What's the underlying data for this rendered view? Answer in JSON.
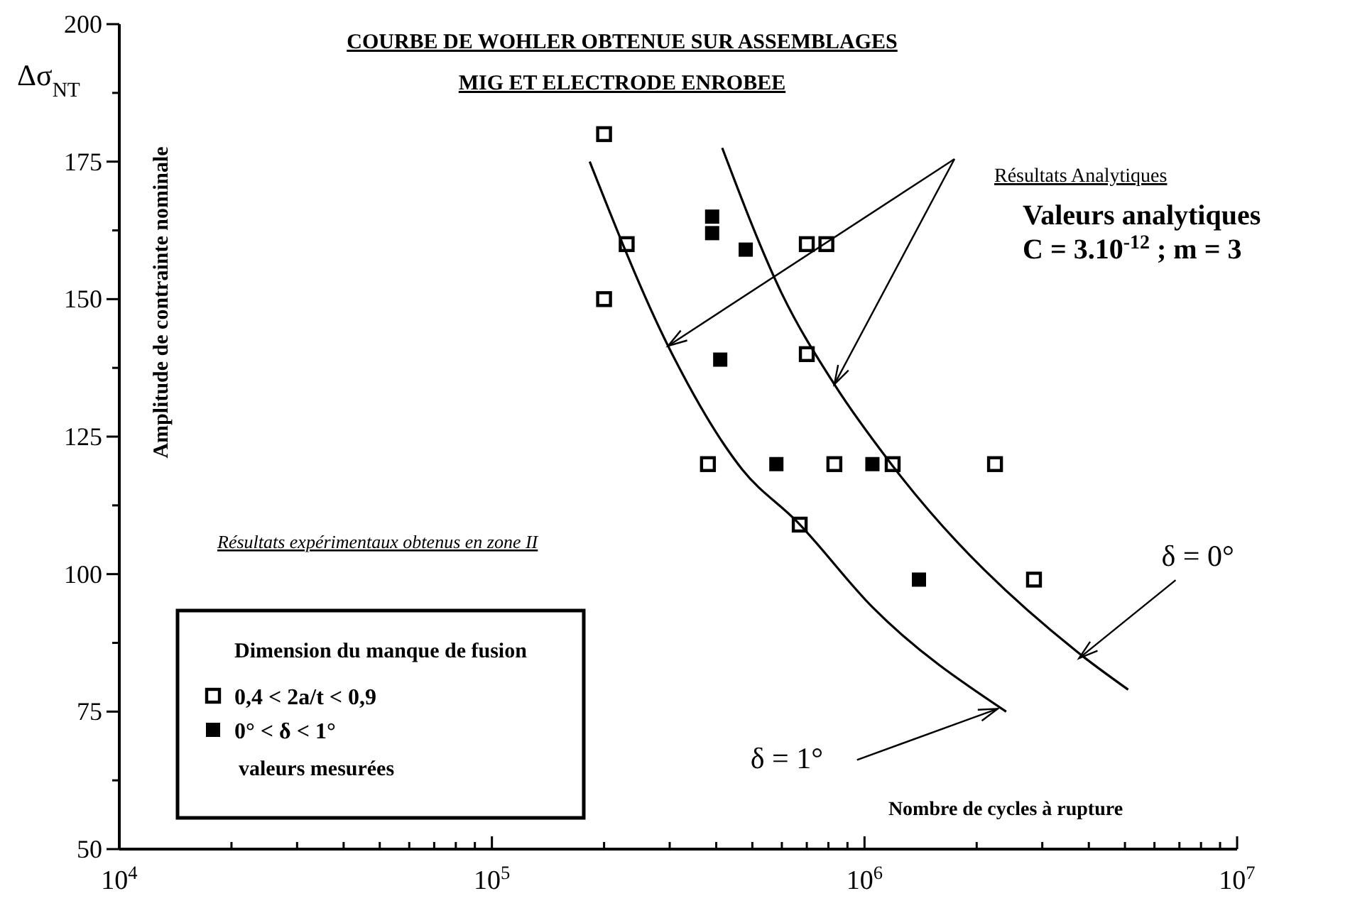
{
  "chart_data": {
    "type": "scatter",
    "title": "COURBE DE WOHLER OBTENUE SUR ASSEMBLAGES",
    "subtitle": "MIG ET ELECTRODE ENROBEE",
    "xlabel": "Nombre de cycles à rupture",
    "ylabel": "Amplitude de contrainte nominale",
    "legend_title": "Dimension du manque de fusion",
    "legend": "bottom left",
    "log": "x",
    "marker": "square",
    "grid": false,
    "xlim": [
      10000,
      10000000
    ],
    "ylim": [
      50,
      200
    ],
    "xticks": [
      {
        "value": 10000,
        "label": "10$^{4}$"
      },
      {
        "value": 20000,
        "label": null
      },
      {
        "value": 30000,
        "label": null
      },
      {
        "value": 40000,
        "label": null
      },
      {
        "value": 50000,
        "label": null
      },
      {
        "value": 60000,
        "label": null
      },
      {
        "value": 70000,
        "label": null
      },
      {
        "value": 80000,
        "label": null
      },
      {
        "value": 90000,
        "label": null
      },
      {
        "value": 100000,
        "label": "10$^{5}$"
      },
      {
        "value": 200000,
        "label": null
      },
      {
        "value": 300000,
        "label": null
      },
      {
        "value": 400000,
        "label": null
      },
      {
        "value": 500000,
        "label": null
      },
      {
        "value": 600000,
        "label": null
      },
      {
        "value": 700000,
        "label": null
      },
      {
        "value": 800000,
        "label": null
      },
      {
        "value": 900000,
        "label": null
      },
      {
        "value": 1000000,
        "label": "10$^{6}$"
      },
      {
        "value": 2000000,
        "label": null
      },
      {
        "value": 3000000,
        "label": null
      },
      {
        "value": 4000000,
        "label": null
      },
      {
        "value": 5000000,
        "label": null
      },
      {
        "value": 6000000,
        "label": null
      },
      {
        "value": 7000000,
        "label": null
      },
      {
        "value": 8000000,
        "label": null
      },
      {
        "value": 9000000,
        "label": null
      },
      {
        "value": 10000000,
        "label": "10$^{7}$"
      }
    ],
    "yticks": [
      50,
      {
        "value": 62.5,
        "label": null
      },
      75,
      {
        "value": 87.5,
        "label": null
      },
      100,
      {
        "value": 112.5,
        "label": null
      },
      125,
      {
        "value": 137.5,
        "label": null
      },
      150,
      {
        "value": 162.5,
        "label": null
      },
      175,
      {
        "value": 187.5,
        "label": null
      },
      200
    ],
    "series": [
      {
        "name": "0,4 < 2a/t < 0,9",
        "color": "#000000",
        "x": [
          200000,
          230000,
          200000,
          380000,
          700000,
          790000,
          700000,
          830000,
          1190000,
          670000,
          2240000,
          2850000
        ],
        "values": [
          180,
          160,
          150,
          120,
          160,
          160,
          140,
          120,
          120,
          109,
          120,
          99
        ]
      },
      {
        "name": "0° < δ < 1°",
        "color": "#000000",
        "x": [
          390000,
          390000,
          480000,
          410000,
          580000,
          1050000,
          1400000
        ],
        "values": [
          165,
          162,
          159,
          139,
          120,
          120,
          99
        ]
      },
      {
        "name": "δ = 1°",
        "type": "line",
        "color": "#000000",
        "marker": "none",
        "x": [
          183000,
          297000,
          470000,
          660000,
          1050000,
          2400000
        ],
        "values": [
          175,
          141.5,
          119,
          109.5,
          94,
          75
        ]
      },
      {
        "name": "δ = 0°",
        "type": "line",
        "color": "#000000",
        "marker": "none",
        "x": [
          415000,
          600000,
          830000,
          1180000,
          3700000,
          5100000
        ],
        "values": [
          177.5,
          151,
          134.5,
          120,
          86,
          79
        ]
      }
    ],
    "annotations": [
      "Résultats Analytiques",
      "Valeurs analytiques",
      "C = 3.10$^{-12}$ ; m = 3",
      "Résultats expérimentaux obtenus en zone II",
      "valeurs mesurées",
      "Δσ$_{NT}$"
    ]
  }
}
